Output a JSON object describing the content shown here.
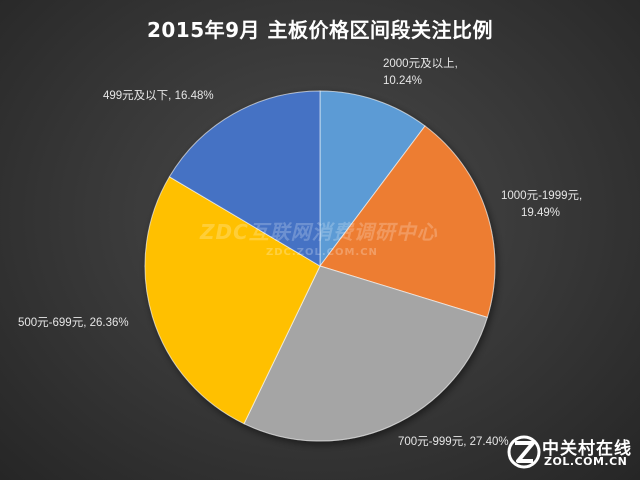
{
  "title": "2015年9月 主板价格区间段关注比例",
  "watermark": {
    "main": "ZDC互联网消费调研中心",
    "sub": "ZDC.ZOL.COM.CN"
  },
  "logo": {
    "cn": "中关村在线",
    "en": "ZOL.COM.CN"
  },
  "chart_data": {
    "type": "pie",
    "title": "2015年9月 主板价格区间段关注比例",
    "slices": [
      {
        "name": "2000元及以上",
        "value": 10.24,
        "label_lines": [
          "2000元及以上,",
          "10.24%"
        ],
        "color": "#5b9bd5"
      },
      {
        "name": "1000元-1999元",
        "value": 19.49,
        "label_lines": [
          "1000元-1999元,",
          "19.49%"
        ],
        "color": "#ed7d31"
      },
      {
        "name": "700元-999元",
        "value": 27.4,
        "label_lines": [
          "700元-999元, 27.40%"
        ],
        "color": "#a5a5a5"
      },
      {
        "name": "500元-699元",
        "value": 26.36,
        "label_lines": [
          "500元-699元, 26.36%"
        ],
        "color": "#ffc000"
      },
      {
        "name": "499元及以下",
        "value": 16.48,
        "label_lines": [
          "499元及以下, 16.48%"
        ],
        "color": "#4472c4"
      }
    ]
  }
}
